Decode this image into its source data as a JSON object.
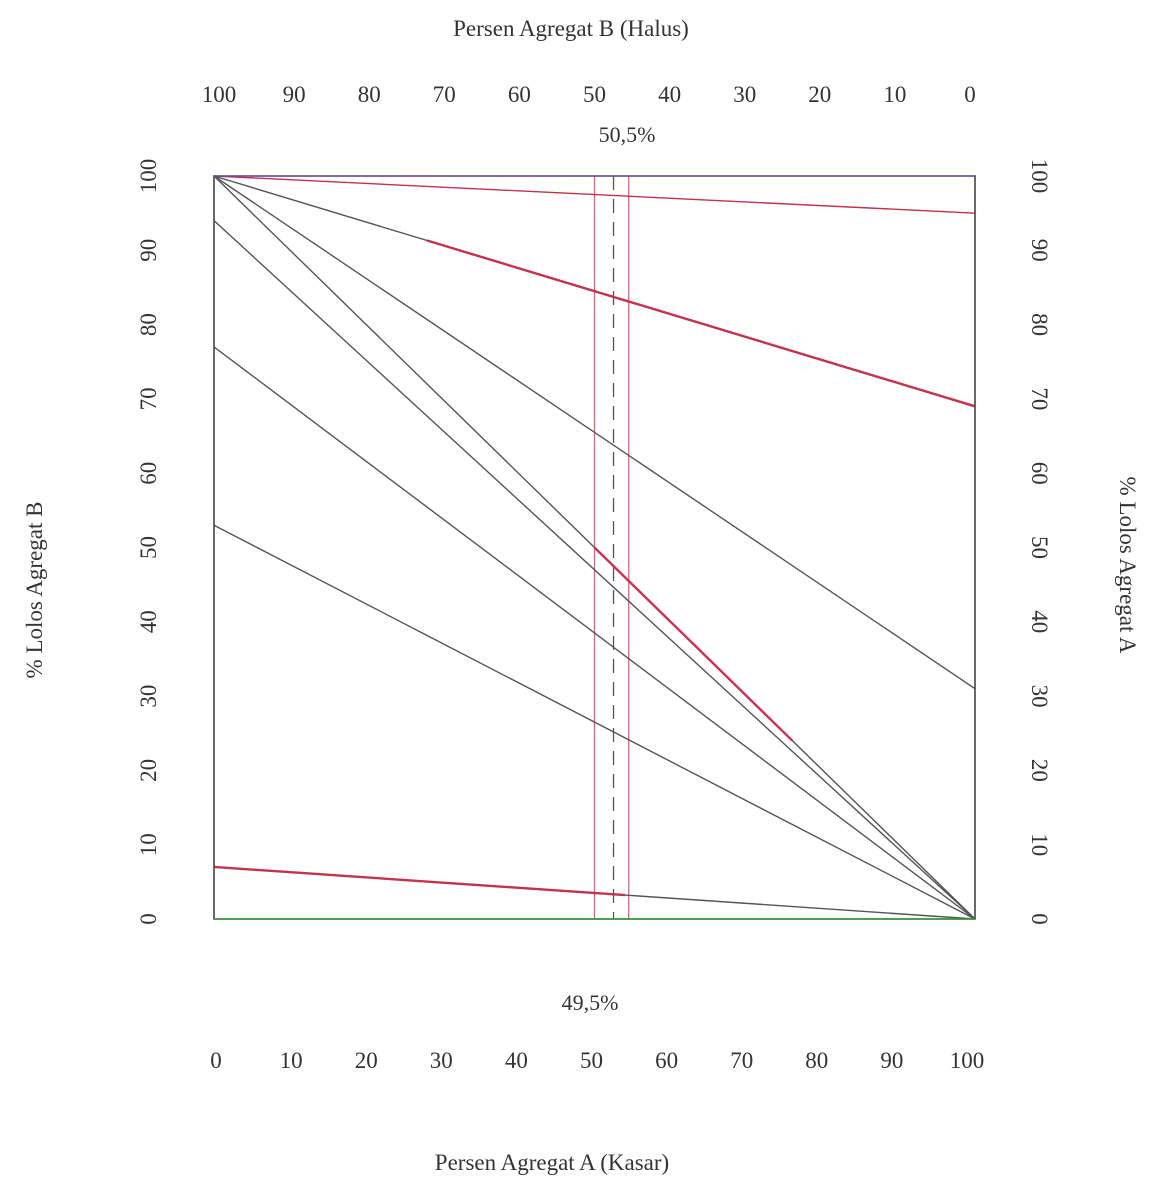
{
  "chart_data": {
    "type": "line",
    "title": "",
    "top_axis": {
      "label": "Persen Agregat B (Halus)",
      "ticks": [
        100,
        90,
        80,
        70,
        60,
        50,
        40,
        30,
        20,
        10,
        0
      ]
    },
    "bottom_axis": {
      "label": "Persen Agregat A (Kasar)",
      "ticks": [
        0,
        10,
        20,
        30,
        40,
        50,
        60,
        70,
        80,
        90,
        100
      ],
      "range": [
        0,
        100
      ]
    },
    "left_axis": {
      "label": "% Lolos Agregat B",
      "ticks": [
        0,
        10,
        20,
        30,
        40,
        50,
        60,
        70,
        80,
        90,
        100
      ],
      "range": [
        0,
        100
      ]
    },
    "right_axis": {
      "label": "% Lolos Agregat A",
      "ticks": [
        0,
        10,
        20,
        30,
        40,
        50,
        60,
        70,
        80,
        90,
        100
      ],
      "range": [
        0,
        100
      ]
    },
    "annotations": {
      "top_percent": "50,5%",
      "bottom_percent": "49,5%"
    },
    "guide_lines_x": [
      {
        "x": 50,
        "style": "solid",
        "color": "#e06080"
      },
      {
        "x": 52.5,
        "style": "dashed",
        "color": "#555555"
      },
      {
        "x": 54.5,
        "style": "solid",
        "color": "#e06080"
      }
    ],
    "series": [
      {
        "left": 100,
        "right": 95,
        "color": "#c8304c"
      },
      {
        "left": 100,
        "right": 69,
        "color": "#555555",
        "highlight": {
          "from": 28,
          "to": 100,
          "color": "#c8304c"
        }
      },
      {
        "left": 100,
        "right": 31,
        "color": "#555555"
      },
      {
        "left": 100,
        "right": 0,
        "color": "#555555",
        "highlight": {
          "from": 50,
          "to": 76,
          "color": "#d03050"
        }
      },
      {
        "left": 94,
        "right": 0,
        "color": "#555555"
      },
      {
        "left": 77,
        "right": 0,
        "color": "#555555"
      },
      {
        "left": 53,
        "right": 0,
        "color": "#555555"
      },
      {
        "left": 7,
        "right": 0,
        "color": "#555555",
        "highlight": {
          "from": 0,
          "to": 54,
          "color": "#c8304c"
        }
      }
    ]
  }
}
